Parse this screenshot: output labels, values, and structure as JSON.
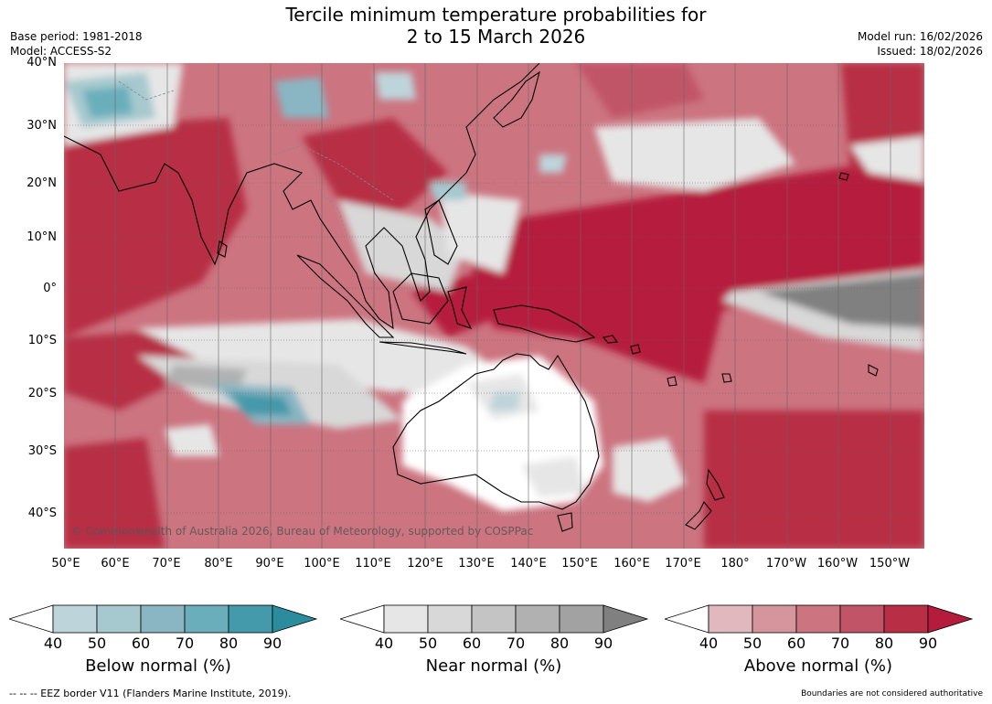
{
  "title_line1": "Tercile minimum temperature probabilities for",
  "title_line2": "2 to 15 March 2026",
  "base_period": "Base period: 1981-2018",
  "model": "Model: ACCESS-S2",
  "model_run": "Model run: 16/02/2026",
  "issued": "Issued: 18/02/2026",
  "lat_labels": [
    "40°N",
    "30°N",
    "20°N",
    "10°N",
    "0°",
    "10°S",
    "20°S",
    "30°S",
    "40°S"
  ],
  "lon_labels": [
    "50°E",
    "60°E",
    "70°E",
    "80°E",
    "90°E",
    "100°E",
    "110°E",
    "120°E",
    "130°E",
    "140°E",
    "150°E",
    "160°E",
    "170°E",
    "180°",
    "170°W",
    "160°W",
    "150°W"
  ],
  "copyright": "© Commonwealth of Australia 2026, Bureau of Meteorology, supported by COSPPac",
  "colorbars": [
    {
      "label": "Below normal (%)",
      "ticks": [
        "40",
        "50",
        "60",
        "70",
        "80",
        "90"
      ],
      "colors": [
        "#ffffff",
        "#bdd4da",
        "#a6c9cf",
        "#8ab5c2",
        "#6aaebc",
        "#4499aa",
        "#2a8c9c"
      ]
    },
    {
      "label": "Near normal (%)",
      "ticks": [
        "40",
        "50",
        "60",
        "70",
        "80",
        "90"
      ],
      "colors": [
        "#ffffff",
        "#e6e6e6",
        "#d8d8d8",
        "#c4c4c4",
        "#b1b1b1",
        "#a2a2a2",
        "#808080"
      ]
    },
    {
      "label": "Above normal (%)",
      "ticks": [
        "40",
        "50",
        "60",
        "70",
        "80",
        "90"
      ],
      "colors": [
        "#ffffff",
        "#e0b8bd",
        "#d4959d",
        "#cc7480",
        "#c15467",
        "#b72e45",
        "#b51c3c"
      ]
    }
  ],
  "footer_left": "--  --  -- EEZ border V11 (Flanders Marine Institute, 2019).",
  "footer_right": "Boundaries are not considered authoritative"
}
